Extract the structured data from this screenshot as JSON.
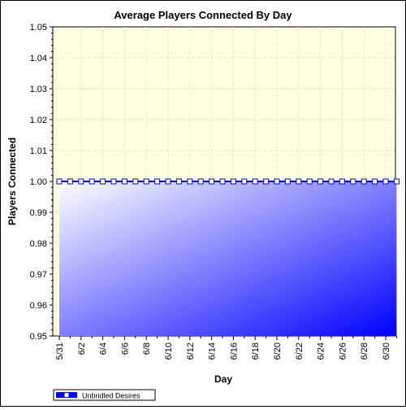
{
  "chart_data": {
    "type": "area",
    "title": "Average Players Connected By Day",
    "xlabel": "Day",
    "ylabel": "Players Connected",
    "ylim": [
      0.95,
      1.05
    ],
    "y_ticks": [
      "0.95",
      "0.96",
      "0.97",
      "0.98",
      "0.99",
      "1.00",
      "1.01",
      "1.02",
      "1.03",
      "1.04",
      "1.05"
    ],
    "x_tick_labels": [
      "5/31",
      "6/2",
      "6/4",
      "6/6",
      "6/8",
      "6/10",
      "6/12",
      "6/14",
      "6/16",
      "6/18",
      "6/20",
      "6/22",
      "6/24",
      "6/26",
      "6/28",
      "6/30"
    ],
    "x": [
      "5/31",
      "6/1",
      "6/2",
      "6/3",
      "6/4",
      "6/5",
      "6/6",
      "6/7",
      "6/8",
      "6/9",
      "6/10",
      "6/11",
      "6/12",
      "6/13",
      "6/14",
      "6/15",
      "6/16",
      "6/17",
      "6/18",
      "6/19",
      "6/20",
      "6/21",
      "6/22",
      "6/23",
      "6/24",
      "6/25",
      "6/26",
      "6/27",
      "6/28",
      "6/29",
      "6/30",
      "7/1"
    ],
    "series": [
      {
        "name": "Unbridled Desires",
        "values": [
          1,
          1,
          1,
          1,
          1,
          1,
          1,
          1,
          1,
          1,
          1,
          1,
          1,
          1,
          1,
          1,
          1,
          1,
          1,
          1,
          1,
          1,
          1,
          1,
          1,
          1,
          1,
          1,
          1,
          1,
          1,
          1
        ]
      }
    ],
    "grid": true,
    "legend": "bottom-left",
    "colors": {
      "plot_background": "#ffffe0",
      "line": "#0000ff",
      "fill_start": "#ffffff",
      "fill_end": "#0000ff",
      "grid": "#c8c8a0"
    }
  }
}
